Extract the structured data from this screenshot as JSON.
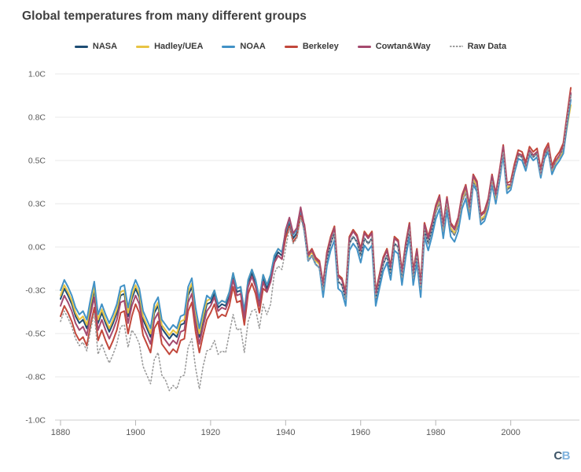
{
  "page": {
    "title": "Global temperatures from many different groups",
    "branding": {
      "letter_c": "C",
      "letter_b": "B",
      "color_c": "#3e5668",
      "color_b": "#7fb2dd"
    }
  },
  "chart_data": {
    "type": "line",
    "title": "Global temperatures from many different groups",
    "xlabel": "",
    "ylabel": "",
    "unit": "C",
    "grid": true,
    "legend_position": "top",
    "x_axis": {
      "start_year": 1880,
      "end_year": 2016,
      "step": 1,
      "ticks": [
        {
          "label": "1880",
          "year": 1880
        },
        {
          "label": "1900",
          "year": 1900
        },
        {
          "label": "1920",
          "year": 1920
        },
        {
          "label": "1940",
          "year": 1940
        },
        {
          "label": "1960",
          "year": 1960
        },
        {
          "label": "1980",
          "year": 1980
        },
        {
          "label": "2000",
          "year": 2000
        }
      ]
    },
    "y_axis": {
      "min": -1.0,
      "max": 1.0,
      "ticks": [
        {
          "label": "1.0C",
          "value": 1.0
        },
        {
          "label": "0.8C",
          "value": 0.75
        },
        {
          "label": "0.5C",
          "value": 0.5
        },
        {
          "label": "0.3C",
          "value": 0.25
        },
        {
          "label": "0.0C",
          "value": 0.0
        },
        {
          "label": "-0.3C",
          "value": -0.25
        },
        {
          "label": "-0.5C",
          "value": -0.5
        },
        {
          "label": "-0.8C",
          "value": -0.75
        },
        {
          "label": "-1.0C",
          "value": -1.0
        }
      ]
    },
    "series": [
      {
        "name": "NASA",
        "color": "#1e4d74",
        "style": "solid",
        "values": [
          -0.3,
          -0.24,
          -0.28,
          -0.33,
          -0.4,
          -0.44,
          -0.42,
          -0.47,
          -0.35,
          -0.25,
          -0.44,
          -0.38,
          -0.44,
          -0.49,
          -0.44,
          -0.38,
          -0.28,
          -0.27,
          -0.4,
          -0.3,
          -0.24,
          -0.29,
          -0.42,
          -0.47,
          -0.52,
          -0.38,
          -0.34,
          -0.47,
          -0.5,
          -0.53,
          -0.5,
          -0.52,
          -0.45,
          -0.44,
          -0.28,
          -0.23,
          -0.4,
          -0.52,
          -0.42,
          -0.33,
          -0.32,
          -0.27,
          -0.35,
          -0.33,
          -0.34,
          -0.28,
          -0.17,
          -0.26,
          -0.25,
          -0.39,
          -0.21,
          -0.15,
          -0.21,
          -0.32,
          -0.18,
          -0.24,
          -0.18,
          -0.07,
          -0.03,
          -0.05,
          0.07,
          0.14,
          0.05,
          0.08,
          0.2,
          0.09,
          -0.08,
          -0.05,
          -0.1,
          -0.12,
          -0.25,
          -0.07,
          0.02,
          0.08,
          -0.2,
          -0.22,
          -0.3,
          0.02,
          0.06,
          0.03,
          -0.05,
          0.05,
          0.02,
          0.05,
          -0.3,
          -0.2,
          -0.1,
          -0.05,
          -0.15,
          0.02,
          0.0,
          -0.18,
          -0.02,
          0.1,
          -0.18,
          -0.05,
          -0.25,
          0.1,
          0.02,
          0.1,
          0.2,
          0.26,
          0.09,
          0.25,
          0.1,
          0.07,
          0.13,
          0.26,
          0.32,
          0.2,
          0.38,
          0.34,
          0.15,
          0.17,
          0.24,
          0.38,
          0.27,
          0.4,
          0.55,
          0.33,
          0.35,
          0.45,
          0.53,
          0.52,
          0.46,
          0.55,
          0.52,
          0.54,
          0.42,
          0.53,
          0.57,
          0.44,
          0.49,
          0.52,
          0.57,
          0.73,
          0.88
        ]
      },
      {
        "name": "Hadley/UEA",
        "color": "#e8c444",
        "style": "solid",
        "values": [
          -0.28,
          -0.22,
          -0.26,
          -0.31,
          -0.38,
          -0.42,
          -0.4,
          -0.45,
          -0.33,
          -0.23,
          -0.42,
          -0.36,
          -0.42,
          -0.47,
          -0.42,
          -0.36,
          -0.26,
          -0.25,
          -0.38,
          -0.28,
          -0.22,
          -0.27,
          -0.4,
          -0.45,
          -0.5,
          -0.36,
          -0.32,
          -0.45,
          -0.48,
          -0.51,
          -0.48,
          -0.5,
          -0.43,
          -0.42,
          -0.26,
          -0.21,
          -0.38,
          -0.5,
          -0.4,
          -0.31,
          -0.3,
          -0.25,
          -0.33,
          -0.31,
          -0.32,
          -0.26,
          -0.15,
          -0.24,
          -0.23,
          -0.37,
          -0.19,
          -0.13,
          -0.19,
          -0.3,
          -0.16,
          -0.22,
          -0.16,
          -0.05,
          -0.01,
          -0.03,
          0.09,
          0.16,
          0.07,
          0.1,
          0.22,
          0.11,
          -0.06,
          -0.03,
          -0.08,
          -0.1,
          -0.21,
          -0.03,
          0.06,
          0.12,
          -0.16,
          -0.18,
          -0.26,
          0.06,
          0.1,
          0.07,
          -0.01,
          0.09,
          0.06,
          0.09,
          -0.26,
          -0.16,
          -0.06,
          -0.01,
          -0.11,
          0.06,
          0.04,
          -0.14,
          0.02,
          0.14,
          -0.14,
          -0.01,
          -0.21,
          0.14,
          0.06,
          0.14,
          0.21,
          0.27,
          0.1,
          0.26,
          0.11,
          0.08,
          0.14,
          0.27,
          0.33,
          0.21,
          0.39,
          0.35,
          0.16,
          0.18,
          0.25,
          0.39,
          0.28,
          0.41,
          0.56,
          0.34,
          0.36,
          0.46,
          0.54,
          0.53,
          0.47,
          0.56,
          0.53,
          0.55,
          0.43,
          0.54,
          0.57,
          0.44,
          0.49,
          0.52,
          0.55,
          0.69,
          0.82
        ]
      },
      {
        "name": "NOAA",
        "color": "#4292c6",
        "style": "solid",
        "values": [
          -0.25,
          -0.19,
          -0.23,
          -0.28,
          -0.35,
          -0.39,
          -0.37,
          -0.42,
          -0.3,
          -0.2,
          -0.39,
          -0.33,
          -0.39,
          -0.44,
          -0.39,
          -0.33,
          -0.23,
          -0.22,
          -0.35,
          -0.25,
          -0.19,
          -0.24,
          -0.37,
          -0.42,
          -0.47,
          -0.33,
          -0.29,
          -0.42,
          -0.45,
          -0.48,
          -0.45,
          -0.47,
          -0.4,
          -0.39,
          -0.23,
          -0.18,
          -0.35,
          -0.47,
          -0.37,
          -0.28,
          -0.3,
          -0.25,
          -0.33,
          -0.31,
          -0.32,
          -0.26,
          -0.15,
          -0.24,
          -0.23,
          -0.37,
          -0.19,
          -0.13,
          -0.19,
          -0.3,
          -0.16,
          -0.22,
          -0.16,
          -0.05,
          -0.01,
          -0.03,
          0.09,
          0.16,
          0.07,
          0.1,
          0.22,
          0.09,
          -0.08,
          -0.05,
          -0.1,
          -0.12,
          -0.29,
          -0.11,
          -0.02,
          0.04,
          -0.24,
          -0.26,
          -0.34,
          -0.02,
          0.02,
          -0.01,
          -0.09,
          0.01,
          -0.02,
          0.01,
          -0.34,
          -0.24,
          -0.14,
          -0.09,
          -0.19,
          -0.02,
          -0.04,
          -0.22,
          -0.06,
          0.06,
          -0.22,
          -0.09,
          -0.29,
          0.06,
          -0.02,
          0.06,
          0.16,
          0.22,
          0.05,
          0.21,
          0.06,
          0.03,
          0.09,
          0.22,
          0.28,
          0.16,
          0.36,
          0.32,
          0.13,
          0.15,
          0.22,
          0.36,
          0.25,
          0.38,
          0.53,
          0.31,
          0.33,
          0.43,
          0.51,
          0.5,
          0.44,
          0.53,
          0.5,
          0.52,
          0.4,
          0.51,
          0.55,
          0.42,
          0.47,
          0.5,
          0.54,
          0.7,
          0.85
        ]
      },
      {
        "name": "Berkeley",
        "color": "#c2483c",
        "style": "solid",
        "values": [
          -0.4,
          -0.34,
          -0.38,
          -0.43,
          -0.5,
          -0.54,
          -0.52,
          -0.57,
          -0.45,
          -0.35,
          -0.54,
          -0.48,
          -0.54,
          -0.59,
          -0.54,
          -0.48,
          -0.38,
          -0.37,
          -0.5,
          -0.4,
          -0.33,
          -0.38,
          -0.51,
          -0.56,
          -0.61,
          -0.47,
          -0.43,
          -0.56,
          -0.59,
          -0.62,
          -0.59,
          -0.61,
          -0.54,
          -0.53,
          -0.37,
          -0.32,
          -0.49,
          -0.61,
          -0.51,
          -0.42,
          -0.38,
          -0.33,
          -0.41,
          -0.39,
          -0.4,
          -0.34,
          -0.23,
          -0.32,
          -0.31,
          -0.45,
          -0.27,
          -0.21,
          -0.27,
          -0.38,
          -0.24,
          -0.26,
          -0.2,
          -0.09,
          -0.05,
          -0.07,
          0.05,
          0.12,
          0.03,
          0.06,
          0.18,
          0.13,
          -0.04,
          -0.01,
          -0.06,
          -0.08,
          -0.21,
          -0.03,
          0.06,
          0.12,
          -0.16,
          -0.18,
          -0.26,
          0.06,
          0.1,
          0.07,
          -0.01,
          0.09,
          0.06,
          0.09,
          -0.26,
          -0.16,
          -0.06,
          -0.01,
          -0.11,
          0.06,
          0.04,
          -0.14,
          0.02,
          0.14,
          -0.14,
          -0.01,
          -0.21,
          0.14,
          0.06,
          0.14,
          0.24,
          0.3,
          0.13,
          0.29,
          0.14,
          0.11,
          0.17,
          0.3,
          0.36,
          0.24,
          0.42,
          0.38,
          0.19,
          0.21,
          0.28,
          0.42,
          0.31,
          0.44,
          0.59,
          0.37,
          0.38,
          0.48,
          0.56,
          0.55,
          0.49,
          0.58,
          0.55,
          0.57,
          0.45,
          0.56,
          0.6,
          0.47,
          0.52,
          0.55,
          0.6,
          0.76,
          0.92
        ]
      },
      {
        "name": "Cowtan&Way",
        "color": "#a54a6e",
        "style": "solid",
        "values": [
          -0.34,
          -0.28,
          -0.32,
          -0.37,
          -0.44,
          -0.48,
          -0.46,
          -0.51,
          -0.39,
          -0.29,
          -0.48,
          -0.42,
          -0.48,
          -0.53,
          -0.48,
          -0.42,
          -0.32,
          -0.31,
          -0.44,
          -0.34,
          -0.28,
          -0.33,
          -0.46,
          -0.51,
          -0.56,
          -0.42,
          -0.38,
          -0.51,
          -0.54,
          -0.57,
          -0.54,
          -0.56,
          -0.49,
          -0.48,
          -0.32,
          -0.27,
          -0.44,
          -0.56,
          -0.46,
          -0.37,
          -0.34,
          -0.29,
          -0.37,
          -0.35,
          -0.36,
          -0.3,
          -0.19,
          -0.28,
          -0.27,
          -0.41,
          -0.23,
          -0.17,
          -0.23,
          -0.34,
          -0.2,
          -0.26,
          -0.2,
          -0.09,
          -0.05,
          -0.07,
          0.1,
          0.17,
          0.08,
          0.11,
          0.23,
          0.12,
          -0.05,
          -0.02,
          -0.07,
          -0.09,
          -0.22,
          -0.04,
          0.05,
          0.11,
          -0.17,
          -0.19,
          -0.27,
          0.05,
          0.09,
          0.06,
          -0.02,
          0.08,
          0.05,
          0.08,
          -0.27,
          -0.17,
          -0.07,
          -0.02,
          -0.12,
          0.05,
          0.03,
          -0.15,
          0.01,
          0.13,
          -0.15,
          -0.02,
          -0.22,
          0.13,
          0.05,
          0.13,
          0.23,
          0.29,
          0.12,
          0.28,
          0.13,
          0.1,
          0.16,
          0.29,
          0.35,
          0.23,
          0.41,
          0.37,
          0.18,
          0.2,
          0.27,
          0.41,
          0.3,
          0.43,
          0.58,
          0.36,
          0.36,
          0.46,
          0.54,
          0.53,
          0.47,
          0.56,
          0.53,
          0.55,
          0.43,
          0.54,
          0.58,
          0.45,
          0.5,
          0.53,
          0.58,
          0.74,
          0.89
        ]
      },
      {
        "name": "Raw Data",
        "color": "#9b9b9b",
        "style": "dotted",
        "values": [
          -0.43,
          -0.37,
          -0.41,
          -0.46,
          -0.53,
          -0.57,
          -0.55,
          -0.6,
          -0.48,
          -0.38,
          -0.62,
          -0.56,
          -0.62,
          -0.67,
          -0.62,
          -0.56,
          -0.46,
          -0.45,
          -0.58,
          -0.48,
          -0.51,
          -0.56,
          -0.69,
          -0.74,
          -0.79,
          -0.65,
          -0.61,
          -0.74,
          -0.77,
          -0.83,
          -0.8,
          -0.82,
          -0.75,
          -0.74,
          -0.58,
          -0.53,
          -0.7,
          -0.82,
          -0.69,
          -0.6,
          -0.59,
          -0.54,
          -0.62,
          -0.6,
          -0.61,
          -0.5,
          -0.39,
          -0.48,
          -0.47,
          -0.61,
          -0.43,
          -0.37,
          -0.36,
          -0.47,
          -0.33,
          -0.39,
          -0.33,
          -0.15,
          -0.11,
          -0.13,
          -0.01,
          0.11,
          0.02,
          0.05,
          0.17,
          0.09,
          -0.08,
          -0.05,
          -0.1,
          -0.12,
          -0.25,
          -0.07,
          0.02,
          0.08,
          -0.2,
          -0.22,
          -0.3,
          0.02,
          0.06,
          0.03,
          -0.05,
          0.05,
          0.02,
          0.05,
          -0.3,
          -0.2,
          -0.1,
          -0.05,
          -0.15,
          0.02,
          0.0,
          -0.18,
          -0.02,
          0.1,
          -0.18,
          -0.05,
          -0.25,
          0.1,
          0.02,
          0.1,
          0.2,
          0.26,
          0.09,
          0.25,
          0.1,
          0.07,
          0.13,
          0.26,
          0.32,
          0.2,
          0.38,
          0.34,
          0.15,
          0.17,
          0.24,
          0.38,
          0.27,
          0.4,
          0.55,
          0.33,
          0.35,
          0.45,
          0.53,
          0.52,
          0.46,
          0.55,
          0.52,
          0.54,
          0.42,
          0.53,
          0.57,
          0.44,
          0.49,
          0.52,
          0.57,
          0.73,
          0.88
        ]
      }
    ]
  }
}
